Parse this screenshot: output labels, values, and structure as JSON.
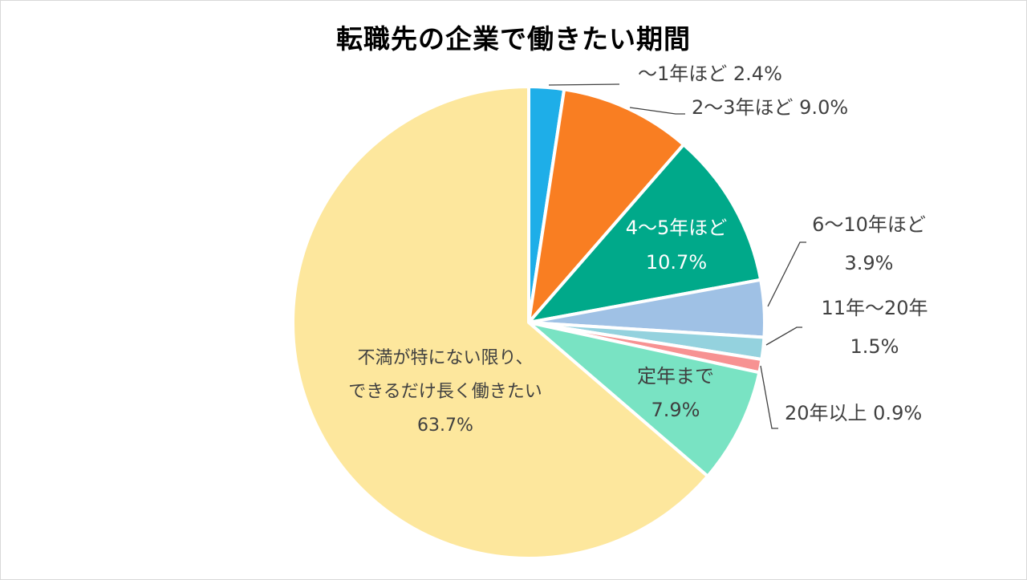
{
  "chart_data": {
    "type": "pie",
    "title": "転職先の企業で働きたい期間",
    "start_angle_deg": 0,
    "direction": "clockwise",
    "slices": [
      {
        "label_lines": [
          "～1年ほど 2.4%"
        ],
        "value": 2.4,
        "color": "#1eaee8",
        "label_color": "#404040"
      },
      {
        "label_lines": [
          "2～3年ほど 9.0%"
        ],
        "value": 9.0,
        "color": "#f97e22",
        "label_color": "#404040"
      },
      {
        "label_lines": [
          "4～5年ほど",
          "10.7%"
        ],
        "value": 10.7,
        "color": "#00a98a",
        "label_color": "#ffffff"
      },
      {
        "label_lines": [
          "6～10年ほど",
          "3.9%"
        ],
        "value": 3.9,
        "color": "#9fc1e5",
        "label_color": "#404040"
      },
      {
        "label_lines": [
          "11年～20年",
          "1.5%"
        ],
        "value": 1.5,
        "color": "#94d2de",
        "label_color": "#404040"
      },
      {
        "label_lines": [
          "20年以上 0.9%"
        ],
        "value": 0.9,
        "color": "#f79292",
        "label_color": "#404040"
      },
      {
        "label_lines": [
          "定年まで",
          "7.9%"
        ],
        "value": 7.9,
        "color": "#79e3c3",
        "label_color": "#404040"
      },
      {
        "label_lines": [
          "不満が特にない限り、",
          "できるだけ長く働きたい",
          "63.7%"
        ],
        "value": 63.7,
        "color": "#fde79d",
        "label_color": "#404040"
      }
    ]
  }
}
